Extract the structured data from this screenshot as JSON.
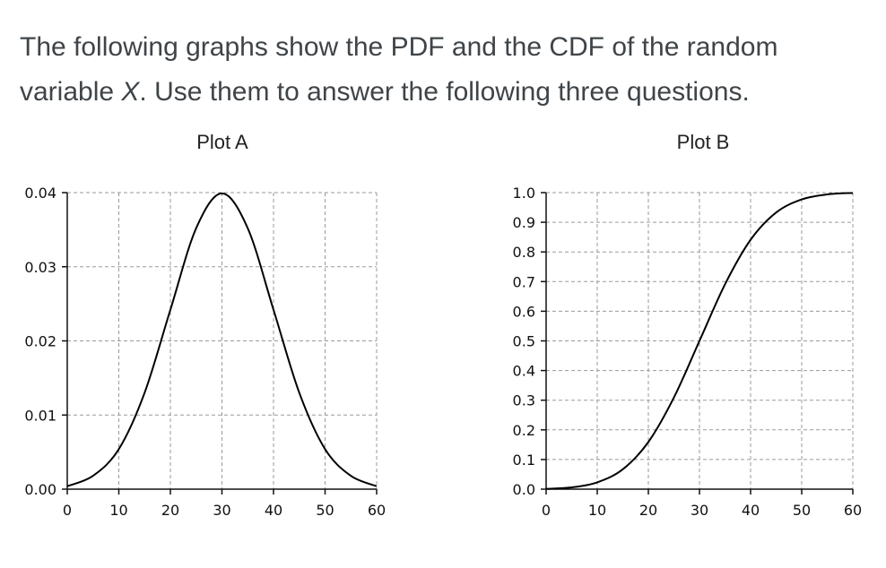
{
  "intro": {
    "line1": "The following graphs show the PDF and the CDF of the random",
    "line2_prefix": "variable ",
    "line2_var": "X",
    "line2_suffix": ". Use them to answer the following three questions."
  },
  "chart_data": [
    {
      "type": "line",
      "title": "Plot A",
      "xlabel": "",
      "ylabel": "",
      "xlim": [
        0,
        60
      ],
      "ylim": [
        0,
        0.04
      ],
      "xticks": [
        "0",
        "10",
        "20",
        "30",
        "40",
        "50",
        "60"
      ],
      "yticks": [
        "0.00",
        "0.01",
        "0.02",
        "0.03",
        "0.04"
      ],
      "grid": true,
      "series": [
        {
          "x": [
            0,
            5,
            10,
            15,
            20,
            25,
            30,
            35,
            40,
            45,
            50,
            55,
            60
          ],
          "y": [
            0.0004,
            0.0018,
            0.0054,
            0.013,
            0.0242,
            0.0352,
            0.0399,
            0.0352,
            0.0242,
            0.013,
            0.0054,
            0.0018,
            0.0004
          ]
        }
      ]
    },
    {
      "type": "line",
      "title": "Plot B",
      "xlabel": "",
      "ylabel": "",
      "xlim": [
        0,
        60
      ],
      "ylim": [
        0,
        1
      ],
      "xticks": [
        "0",
        "10",
        "20",
        "30",
        "40",
        "50",
        "60"
      ],
      "yticks": [
        "0.0",
        "0.1",
        "0.2",
        "0.3",
        "0.4",
        "0.5",
        "0.6",
        "0.7",
        "0.8",
        "0.9",
        "1.0"
      ],
      "grid": true,
      "series": [
        {
          "x": [
            0,
            5,
            10,
            15,
            20,
            25,
            30,
            35,
            40,
            45,
            50,
            55,
            60
          ],
          "y": [
            0.001,
            0.006,
            0.023,
            0.067,
            0.159,
            0.309,
            0.5,
            0.691,
            0.841,
            0.933,
            0.977,
            0.994,
            0.999
          ]
        }
      ]
    }
  ]
}
